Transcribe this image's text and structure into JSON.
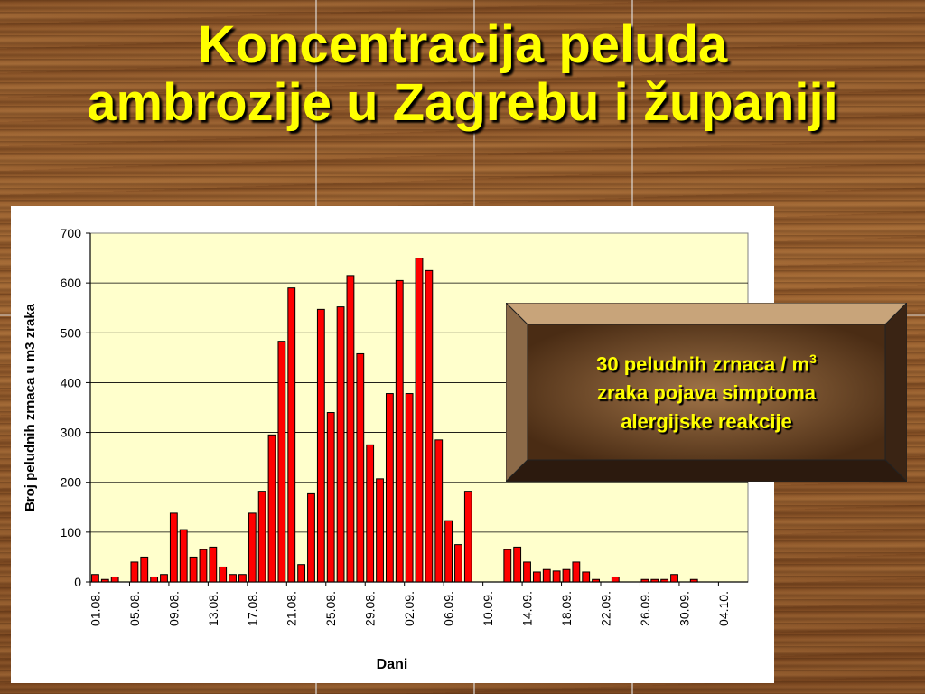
{
  "slide": {
    "title_line1": "Koncentracija peluda",
    "title_line2": "ambrozije u Zagrebu i županiji"
  },
  "callout": {
    "line1_prefix": "30 peludnih zrnaca / m",
    "line1_sup": "3",
    "line2": "zraka pojava simptoma",
    "line3": "alergijske reakcije"
  },
  "colors": {
    "title": "#ffff00",
    "bar_fill": "#ff0000",
    "plot_bg": "#ffffcc",
    "callout_text": "#ffff00"
  },
  "chart_data": {
    "type": "bar",
    "title": "",
    "xlabel": "Dani",
    "ylabel": "Broj peludnih zrnaca u m3 zraka",
    "ylim": [
      0,
      700
    ],
    "yticks": [
      0,
      100,
      200,
      300,
      400,
      500,
      600,
      700
    ],
    "grid": true,
    "legend": "none",
    "tick_labels": [
      "01.08.",
      "05.08.",
      "09.08.",
      "13.08.",
      "17.08.",
      "21.08.",
      "25.08.",
      "29.08.",
      "02.09.",
      "06.09.",
      "10.09.",
      "14.09.",
      "18.09.",
      "22.09.",
      "26.09.",
      "30.09.",
      "04.10."
    ],
    "tick_label_every": 4,
    "categories": [
      "01.08.",
      "02.08.",
      "03.08.",
      "04.08.",
      "05.08.",
      "06.08.",
      "07.08.",
      "08.08.",
      "09.08.",
      "10.08.",
      "11.08.",
      "12.08.",
      "13.08.",
      "14.08.",
      "15.08.",
      "16.08.",
      "17.08.",
      "18.08.",
      "19.08.",
      "20.08.",
      "21.08.",
      "22.08.",
      "23.08.",
      "24.08.",
      "25.08.",
      "26.08.",
      "27.08.",
      "28.08.",
      "29.08.",
      "30.08.",
      "31.08.",
      "01.09.",
      "02.09.",
      "03.09.",
      "04.09.",
      "05.09.",
      "06.09.",
      "07.09.",
      "08.09.",
      "09.09.",
      "10.09.",
      "11.09.",
      "12.09.",
      "13.09.",
      "14.09.",
      "15.09.",
      "16.09.",
      "17.09.",
      "18.09.",
      "19.09.",
      "20.09.",
      "21.09.",
      "22.09.",
      "23.09.",
      "24.09.",
      "25.09.",
      "26.09.",
      "27.09.",
      "28.09.",
      "29.09.",
      "30.09.",
      "01.10.",
      "02.10.",
      "03.10.",
      "04.10.",
      "05.10.",
      "06.10."
    ],
    "values": [
      15,
      5,
      10,
      0,
      40,
      50,
      10,
      15,
      138,
      105,
      50,
      65,
      70,
      30,
      15,
      15,
      138,
      182,
      295,
      483,
      590,
      35,
      177,
      547,
      340,
      552,
      615,
      458,
      275,
      207,
      378,
      605,
      378,
      650,
      625,
      285,
      123,
      75,
      182,
      0,
      0,
      0,
      65,
      70,
      40,
      20,
      25,
      22,
      25,
      40,
      20,
      5,
      0,
      10,
      0,
      0,
      5,
      5,
      5,
      15,
      0,
      5,
      0,
      0,
      0,
      0,
      0
    ]
  }
}
